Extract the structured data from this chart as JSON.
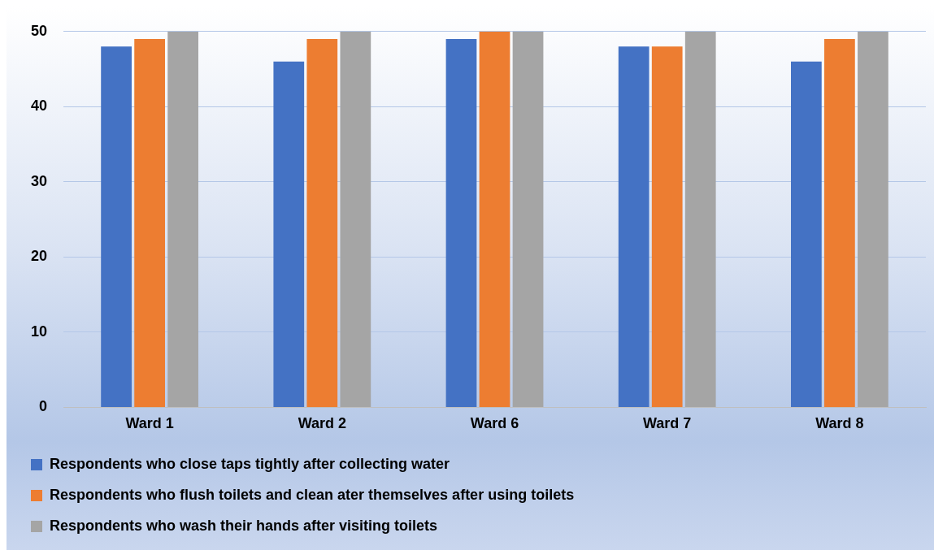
{
  "chart_data": {
    "type": "bar",
    "categories": [
      "Ward 1",
      "Ward 2",
      "Ward 6",
      "Ward 7",
      "Ward 8"
    ],
    "series": [
      {
        "name": "Respondents who close taps tightly after collecting water",
        "color": "#4472c4",
        "values": [
          48,
          46,
          49,
          48,
          46
        ]
      },
      {
        "name": "Respondents who flush toilets and clean ater themselves after using toilets",
        "color": "#ed7d31",
        "values": [
          49,
          49,
          50,
          48,
          49
        ]
      },
      {
        "name": "Respondents who wash their hands after visiting toilets",
        "color": "#a5a5a5",
        "values": [
          50,
          50,
          50,
          50,
          50
        ]
      }
    ],
    "ylim": [
      0,
      50
    ],
    "yticks": [
      0,
      10,
      20,
      30,
      40,
      50
    ],
    "grid": "y",
    "legend": "bottom"
  }
}
